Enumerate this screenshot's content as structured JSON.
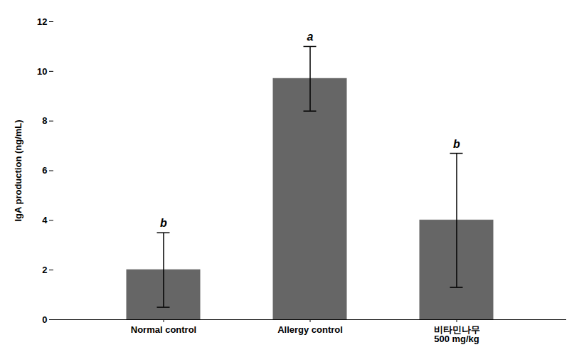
{
  "chart_data": {
    "type": "bar",
    "categories": [
      "Normal control",
      "Allergy control",
      "비타민나무\n500 mg/kg"
    ],
    "values": [
      2.0,
      9.7,
      4.0
    ],
    "errors": [
      1.5,
      1.3,
      2.7
    ],
    "annotations": [
      "b",
      "a",
      "b"
    ],
    "color": "#666666",
    "ylabel": "IgA production (ng/mL)",
    "ylim": [
      0,
      12
    ],
    "yticks": [
      0,
      2,
      4,
      6,
      8,
      10,
      12
    ],
    "grid": false
  }
}
